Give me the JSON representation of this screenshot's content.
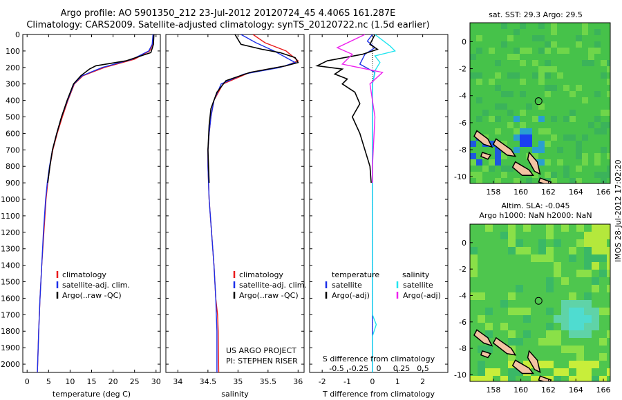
{
  "titles": {
    "line1": "Argo profile: AO 5901350_212 23-Jul-2012 20120724_45 4.406S 161.287E",
    "line2": "Climatology: CARS2009. Satellite-adjusted climatology: synTS_20120722.nc (1.5d earlier)"
  },
  "colors": {
    "climatology": "#e8191b",
    "satellite": "#1b2ee8",
    "argo": "#000000",
    "sat_sal": "#22e5ef",
    "argo_sal": "#ee22ee"
  },
  "credits": {
    "line1": "US ARGO PROJECT",
    "line2": "PI: STEPHEN RISER"
  },
  "panel3": {
    "s_label": "S difference from climatology",
    "s_ticks": [
      "-0.5",
      "-0.25",
      "0",
      "0.25",
      "0.5"
    ],
    "legend": {
      "temperature": "temperature",
      "salinity": "salinity",
      "t_sat": "satellite",
      "t_argo": "Argo(-adj)",
      "s_sat": "satellite",
      "s_argo": "Argo(-adj)"
    }
  },
  "legend12": {
    "clim": "climatology",
    "sat": "satellite-adj. clim.",
    "argo": "Argo(..raw -QC)"
  },
  "maps": {
    "top_title": "sat. SST: 29.3 Argo: 29.5",
    "bottom_title_1": "Altim. SLA: -0.045",
    "bottom_title_2": "Argo h1000: NaN h2000: NaN",
    "x_ticks": [
      "158",
      "160",
      "162",
      "164",
      "166"
    ],
    "y_ticks": [
      "0",
      "-2",
      "-4",
      "-6",
      "-8",
      "-10"
    ],
    "float_position": {
      "lon": 161.287,
      "lat": -4.406
    }
  },
  "stamp": "IMOS 28-Jul-2012 17:02:20",
  "chart_data": [
    {
      "type": "line",
      "xlabel": "temperature (deg C)",
      "ylabel": "",
      "xlim": [
        -1,
        31
      ],
      "ylim": [
        2050,
        0
      ],
      "x_ticks": [
        "0",
        "5",
        "10",
        "15",
        "20",
        "25",
        "30"
      ],
      "y_ticks": [
        "0",
        "100",
        "200",
        "300",
        "400",
        "500",
        "600",
        "700",
        "800",
        "900",
        "1000",
        "1100",
        "1200",
        "1300",
        "1400",
        "1500",
        "1600",
        "1700",
        "1800",
        "1900",
        "2000"
      ],
      "series": [
        {
          "name": "climatology",
          "color": "#e8191b",
          "points": [
            [
              29.5,
              0
            ],
            [
              29.2,
              60
            ],
            [
              28.5,
              100
            ],
            [
              25,
              150
            ],
            [
              18,
              200
            ],
            [
              13,
              250
            ],
            [
              11,
              300
            ],
            [
              9.5,
              400
            ],
            [
              8.2,
              500
            ],
            [
              7,
              600
            ],
            [
              6,
              700
            ],
            [
              5.3,
              800
            ],
            [
              4.8,
              900
            ],
            [
              4.4,
              1000
            ],
            [
              3.9,
              1200
            ],
            [
              3.4,
              1400
            ],
            [
              3.0,
              1600
            ],
            [
              2.7,
              1800
            ],
            [
              2.4,
              2050
            ]
          ]
        },
        {
          "name": "satellite-adj. clim.",
          "color": "#1b2ee8",
          "points": [
            [
              29.3,
              0
            ],
            [
              29.1,
              60
            ],
            [
              28.3,
              100
            ],
            [
              24.5,
              150
            ],
            [
              17.5,
              200
            ],
            [
              12.8,
              250
            ],
            [
              10.9,
              300
            ],
            [
              9.4,
              400
            ],
            [
              8.0,
              500
            ],
            [
              6.9,
              600
            ],
            [
              5.9,
              700
            ],
            [
              5.2,
              800
            ],
            [
              4.7,
              900
            ],
            [
              4.3,
              1000
            ],
            [
              3.8,
              1200
            ],
            [
              3.4,
              1400
            ],
            [
              3.0,
              1600
            ],
            [
              2.7,
              1800
            ],
            [
              2.4,
              2050
            ]
          ]
        },
        {
          "name": "Argo(..raw -QC)",
          "color": "#000000",
          "points": [
            [
              29.5,
              0
            ],
            [
              29.4,
              60
            ],
            [
              28.8,
              110
            ],
            [
              23,
              160
            ],
            [
              16,
              190
            ],
            [
              14.5,
              210
            ],
            [
              12.5,
              250
            ],
            [
              10.8,
              300
            ],
            [
              9.3,
              400
            ],
            [
              8.0,
              500
            ],
            [
              6.9,
              600
            ],
            [
              5.9,
              700
            ],
            [
              5.3,
              800
            ],
            [
              4.8,
              900
            ]
          ]
        }
      ]
    },
    {
      "type": "line",
      "xlabel": "salinity",
      "ylabel": "",
      "xlim": [
        33.8,
        36.1
      ],
      "ylim": [
        2050,
        0
      ],
      "x_ticks": [
        "34",
        "34.5",
        "35",
        "35.5",
        "36"
      ],
      "series": [
        {
          "name": "climatology",
          "color": "#e8191b",
          "points": [
            [
              35.25,
              0
            ],
            [
              35.45,
              50
            ],
            [
              35.8,
              100
            ],
            [
              36.0,
              160
            ],
            [
              35.8,
              190
            ],
            [
              35.2,
              230
            ],
            [
              34.75,
              300
            ],
            [
              34.6,
              400
            ],
            [
              34.55,
              500
            ],
            [
              34.52,
              600
            ],
            [
              34.5,
              700
            ],
            [
              34.5,
              800
            ],
            [
              34.52,
              1000
            ],
            [
              34.56,
              1200
            ],
            [
              34.6,
              1400
            ],
            [
              34.63,
              1600
            ],
            [
              34.66,
              1700
            ],
            [
              34.67,
              1800
            ],
            [
              34.68,
              2050
            ]
          ]
        },
        {
          "name": "satellite-adj. clim.",
          "color": "#1b2ee8",
          "points": [
            [
              35.05,
              0
            ],
            [
              35.3,
              50
            ],
            [
              35.6,
              100
            ],
            [
              35.95,
              170
            ],
            [
              35.7,
              200
            ],
            [
              35.1,
              240
            ],
            [
              34.72,
              300
            ],
            [
              34.6,
              400
            ],
            [
              34.55,
              500
            ],
            [
              34.52,
              600
            ],
            [
              34.5,
              700
            ],
            [
              34.5,
              800
            ],
            [
              34.52,
              1000
            ],
            [
              34.56,
              1200
            ],
            [
              34.6,
              1400
            ],
            [
              34.63,
              1600
            ],
            [
              34.64,
              1700
            ],
            [
              34.65,
              1800
            ],
            [
              34.65,
              2050
            ]
          ]
        },
        {
          "name": "Argo(..raw -QC)",
          "color": "#000000",
          "points": [
            [
              34.95,
              0
            ],
            [
              35.05,
              60
            ],
            [
              35.4,
              90
            ],
            [
              35.7,
              110
            ],
            [
              35.95,
              140
            ],
            [
              36.0,
              170
            ],
            [
              35.8,
              190
            ],
            [
              35.2,
              230
            ],
            [
              34.8,
              280
            ],
            [
              34.65,
              350
            ],
            [
              34.55,
              450
            ],
            [
              34.52,
              550
            ],
            [
              34.5,
              700
            ],
            [
              34.52,
              900
            ]
          ]
        }
      ]
    },
    {
      "type": "line",
      "xlabel": "T difference from climatology",
      "ylabel": "",
      "xlim": [
        -2.5,
        3
      ],
      "ylim": [
        2050,
        0
      ],
      "x_ticks": [
        "-2",
        "-1",
        "0",
        "1",
        "2"
      ],
      "series": [
        {
          "name": "temperature satellite",
          "color": "#1b2ee8",
          "points": [
            [
              0,
              0
            ],
            [
              -0.2,
              40
            ],
            [
              0.1,
              80
            ],
            [
              -0.3,
              120
            ],
            [
              -0.5,
              180
            ],
            [
              0.1,
              230
            ],
            [
              0,
              300
            ],
            [
              0,
              500
            ],
            [
              0,
              1000
            ],
            [
              0,
              1500
            ],
            [
              0,
              2050
            ]
          ]
        },
        {
          "name": "temperature Argo(-adj)",
          "color": "#000000",
          "points": [
            [
              0.1,
              0
            ],
            [
              -0.1,
              60
            ],
            [
              0.2,
              90
            ],
            [
              -0.4,
              120
            ],
            [
              -1.8,
              160
            ],
            [
              -2.2,
              190
            ],
            [
              -1.2,
              210
            ],
            [
              -1.5,
              240
            ],
            [
              -1.0,
              270
            ],
            [
              -1.2,
              300
            ],
            [
              -0.7,
              350
            ],
            [
              -0.5,
              420
            ],
            [
              -0.8,
              500
            ],
            [
              -0.5,
              600
            ],
            [
              -0.3,
              700
            ],
            [
              -0.1,
              800
            ],
            [
              -0.05,
              900
            ]
          ]
        },
        {
          "name": "salinity satellite",
          "color": "#22e5ef",
          "points": [
            [
              0.1,
              0
            ],
            [
              0.7,
              70
            ],
            [
              0.9,
              100
            ],
            [
              0.1,
              130
            ],
            [
              0.3,
              170
            ],
            [
              0.1,
              220
            ],
            [
              0,
              300
            ],
            [
              0,
              600
            ],
            [
              0,
              1000
            ],
            [
              0,
              1500
            ],
            [
              0,
              1700
            ],
            [
              0.15,
              1760
            ],
            [
              0,
              1830
            ],
            [
              0,
              2050
            ]
          ]
        },
        {
          "name": "salinity Argo(-adj)",
          "color": "#ee22ee",
          "points": [
            [
              -0.3,
              0
            ],
            [
              -1.4,
              80
            ],
            [
              -0.8,
              120
            ],
            [
              -1.2,
              180
            ],
            [
              0.4,
              230
            ],
            [
              -0.1,
              300
            ],
            [
              0.1,
              500
            ],
            [
              0,
              800
            ],
            [
              0,
              900
            ]
          ]
        }
      ]
    }
  ]
}
